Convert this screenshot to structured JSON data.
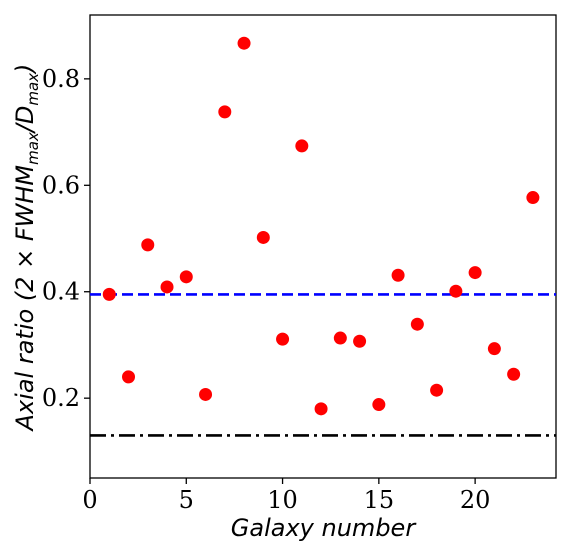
{
  "chart_data": {
    "type": "scatter",
    "xlabel": "Galaxy number",
    "ylabel": "Axial ratio (2 × FWHM",
    "ylabel_sub1": "max",
    "ylabel_mid": "/D",
    "ylabel_sub2": "max",
    "ylabel_end": ")",
    "xlim": [
      0,
      24.2
    ],
    "ylim": [
      0.05,
      0.92
    ],
    "xticks": [
      0,
      5,
      10,
      15,
      20
    ],
    "yticks": [
      0.2,
      0.4,
      0.6,
      0.8
    ],
    "grid": false,
    "series": [
      {
        "marker_color": "#ff0000",
        "x": [
          1,
          2,
          3,
          4,
          5,
          6,
          7,
          8,
          9,
          10,
          11,
          12,
          13,
          14,
          15,
          16,
          17,
          18,
          19,
          20,
          21,
          22,
          23
        ],
        "y": [
          0.395,
          0.24,
          0.488,
          0.409,
          0.428,
          0.207,
          0.738,
          0.867,
          0.502,
          0.311,
          0.674,
          0.18,
          0.313,
          0.307,
          0.188,
          0.431,
          0.339,
          0.215,
          0.401,
          0.436,
          0.293,
          0.245,
          0.577
        ]
      }
    ],
    "hlines": [
      {
        "y": 0.395,
        "color": "#0000ff",
        "style": "dashed"
      },
      {
        "y": 0.13,
        "color": "#000000",
        "style": "dashdot"
      }
    ]
  }
}
